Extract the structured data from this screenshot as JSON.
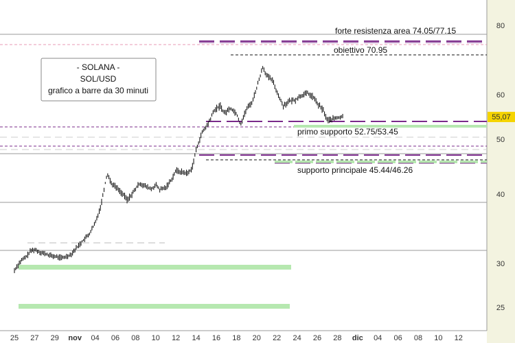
{
  "chart_data": {
    "type": "bar",
    "title_lines": [
      "- SOLANA -",
      "SOL/USD",
      "grafico a barre da 30 minuti"
    ],
    "last_price_label": "55,07",
    "last_price": 55.07,
    "y_ticks": [
      25,
      30,
      40,
      50,
      60,
      80
    ],
    "x_ticks": [
      "25",
      "27",
      "29",
      "nov",
      "04",
      "06",
      "08",
      "10",
      "12",
      "14",
      "16",
      "18",
      "20",
      "22",
      "24",
      "26",
      "28",
      "dic",
      "04",
      "06",
      "08",
      "10",
      "12"
    ],
    "colors": {
      "background": "#ffffff",
      "axis_panel": "#f3f3e0",
      "price_badge": "#f5d400",
      "support_band": "#b6e8b0",
      "bars": "#000000",
      "purple_dash": "#7a2a8a",
      "pink_dash": "#e89ab6",
      "grey_line": "#9a9a9a"
    },
    "series_ohlc_close_path": [
      [
        0,
        29.2
      ],
      [
        0.3,
        30.3
      ],
      [
        0.6,
        31.0
      ],
      [
        0.8,
        31.8
      ],
      [
        1.0,
        32.0
      ],
      [
        1.3,
        31.6
      ],
      [
        1.7,
        31.2
      ],
      [
        2.0,
        31.0
      ],
      [
        2.4,
        30.8
      ],
      [
        2.8,
        31.3
      ],
      [
        3.0,
        32.0
      ],
      [
        3.3,
        33.0
      ],
      [
        3.7,
        34.2
      ],
      [
        4.0,
        35.8
      ],
      [
        4.3,
        38.5
      ],
      [
        4.6,
        43.8
      ],
      [
        4.8,
        42.0
      ],
      [
        5.0,
        41.4
      ],
      [
        5.3,
        40.3
      ],
      [
        5.6,
        39.1
      ],
      [
        5.9,
        40.4
      ],
      [
        6.2,
        42.0
      ],
      [
        6.5,
        41.4
      ],
      [
        6.8,
        40.9
      ],
      [
        7.0,
        41.7
      ],
      [
        7.2,
        40.8
      ],
      [
        7.5,
        41.2
      ],
      [
        7.8,
        42.8
      ],
      [
        8.0,
        44.3
      ],
      [
        8.3,
        44.0
      ],
      [
        8.6,
        43.8
      ],
      [
        8.8,
        44.8
      ],
      [
        9.0,
        48.0
      ],
      [
        9.3,
        51.5
      ],
      [
        9.6,
        53.5
      ],
      [
        9.9,
        56.5
      ],
      [
        10.2,
        57.5
      ],
      [
        10.4,
        55.8
      ],
      [
        10.7,
        57.0
      ],
      [
        11.0,
        55.8
      ],
      [
        11.2,
        53.3
      ],
      [
        11.5,
        56.8
      ],
      [
        11.8,
        58.5
      ],
      [
        12.0,
        62.0
      ],
      [
        12.3,
        68.0
      ],
      [
        12.5,
        65.5
      ],
      [
        12.8,
        64.0
      ],
      [
        13.0,
        60.8
      ],
      [
        13.3,
        57.5
      ],
      [
        13.6,
        58.5
      ],
      [
        13.9,
        58.8
      ],
      [
        14.2,
        59.8
      ],
      [
        14.5,
        60.5
      ],
      [
        14.8,
        59.5
      ],
      [
        15.0,
        58.0
      ],
      [
        15.3,
        56.5
      ],
      [
        15.5,
        54.2
      ],
      [
        15.8,
        54.6
      ],
      [
        16.0,
        54.8
      ],
      [
        16.3,
        55.07
      ]
    ],
    "levels": [
      {
        "label": "forte resistenza area 74.05/77.15",
        "value": 77.15,
        "value2": 74.05,
        "style": "purple"
      },
      {
        "label": "obiettivo 70.95",
        "value": 70.95,
        "style": "black-dash"
      },
      {
        "label": "primo supporto 52.75/53.45",
        "value": 53.45,
        "value2": 52.75,
        "style": "green"
      },
      {
        "label": "supporto principale 45.44/46.26",
        "value": 46.26,
        "value2": 45.44,
        "style": "green"
      }
    ]
  }
}
